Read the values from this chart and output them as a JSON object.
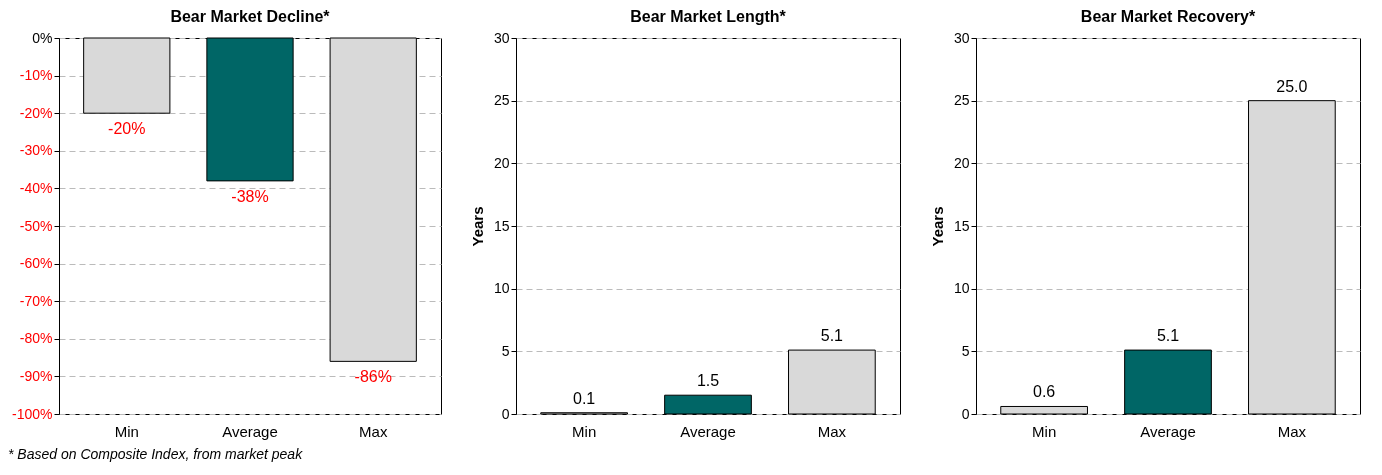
{
  "chart_data": [
    {
      "type": "bar",
      "title": "Bear Market Decline*",
      "categories": [
        "Min",
        "Average",
        "Max"
      ],
      "values": [
        -20,
        -38,
        -86
      ],
      "colors": [
        "#d9d9d9",
        "#006666",
        "#d9d9d9"
      ],
      "value_labels": [
        "-20%",
        "-38%",
        "-86%"
      ],
      "ylim": [
        -100,
        0
      ],
      "yticks": [
        {
          "value": 0,
          "label": "0%"
        },
        {
          "value": -10,
          "label": "-10%"
        },
        {
          "value": -20,
          "label": "-20%"
        },
        {
          "value": -30,
          "label": "-30%"
        },
        {
          "value": -40,
          "label": "-40%"
        },
        {
          "value": -50,
          "label": "-50%"
        },
        {
          "value": -60,
          "label": "-60%"
        },
        {
          "value": -70,
          "label": "-70%"
        },
        {
          "value": -80,
          "label": "-80%"
        },
        {
          "value": -90,
          "label": "-90%"
        },
        {
          "value": -100,
          "label": "-100%"
        }
      ],
      "grid": "y",
      "annotations": [
        "* Based on Composite Index, from market peak"
      ]
    },
    {
      "type": "bar",
      "title": "Bear Market Length*",
      "ylabel": "Years",
      "categories": [
        "Min",
        "Average",
        "Max"
      ],
      "values": [
        0.1,
        1.5,
        5.1
      ],
      "colors": [
        "#d9d9d9",
        "#006666",
        "#d9d9d9"
      ],
      "value_labels": [
        "0.1",
        "1.5",
        "5.1"
      ],
      "ylim": [
        0,
        30
      ],
      "yticks": [
        0,
        5,
        10,
        15,
        20,
        25,
        30
      ],
      "grid": "y"
    },
    {
      "type": "bar",
      "title": "Bear Market Recovery*",
      "ylabel": "Years",
      "categories": [
        "Min",
        "Average",
        "Max"
      ],
      "values": [
        0.6,
        5.1,
        25.0
      ],
      "colors": [
        "#d9d9d9",
        "#006666",
        "#d9d9d9"
      ],
      "value_labels": [
        "0.6",
        "5.1",
        "25.0"
      ],
      "ylim": [
        0,
        30
      ],
      "yticks": [
        0,
        5,
        10,
        15,
        20,
        25,
        30
      ],
      "grid": "y"
    }
  ]
}
